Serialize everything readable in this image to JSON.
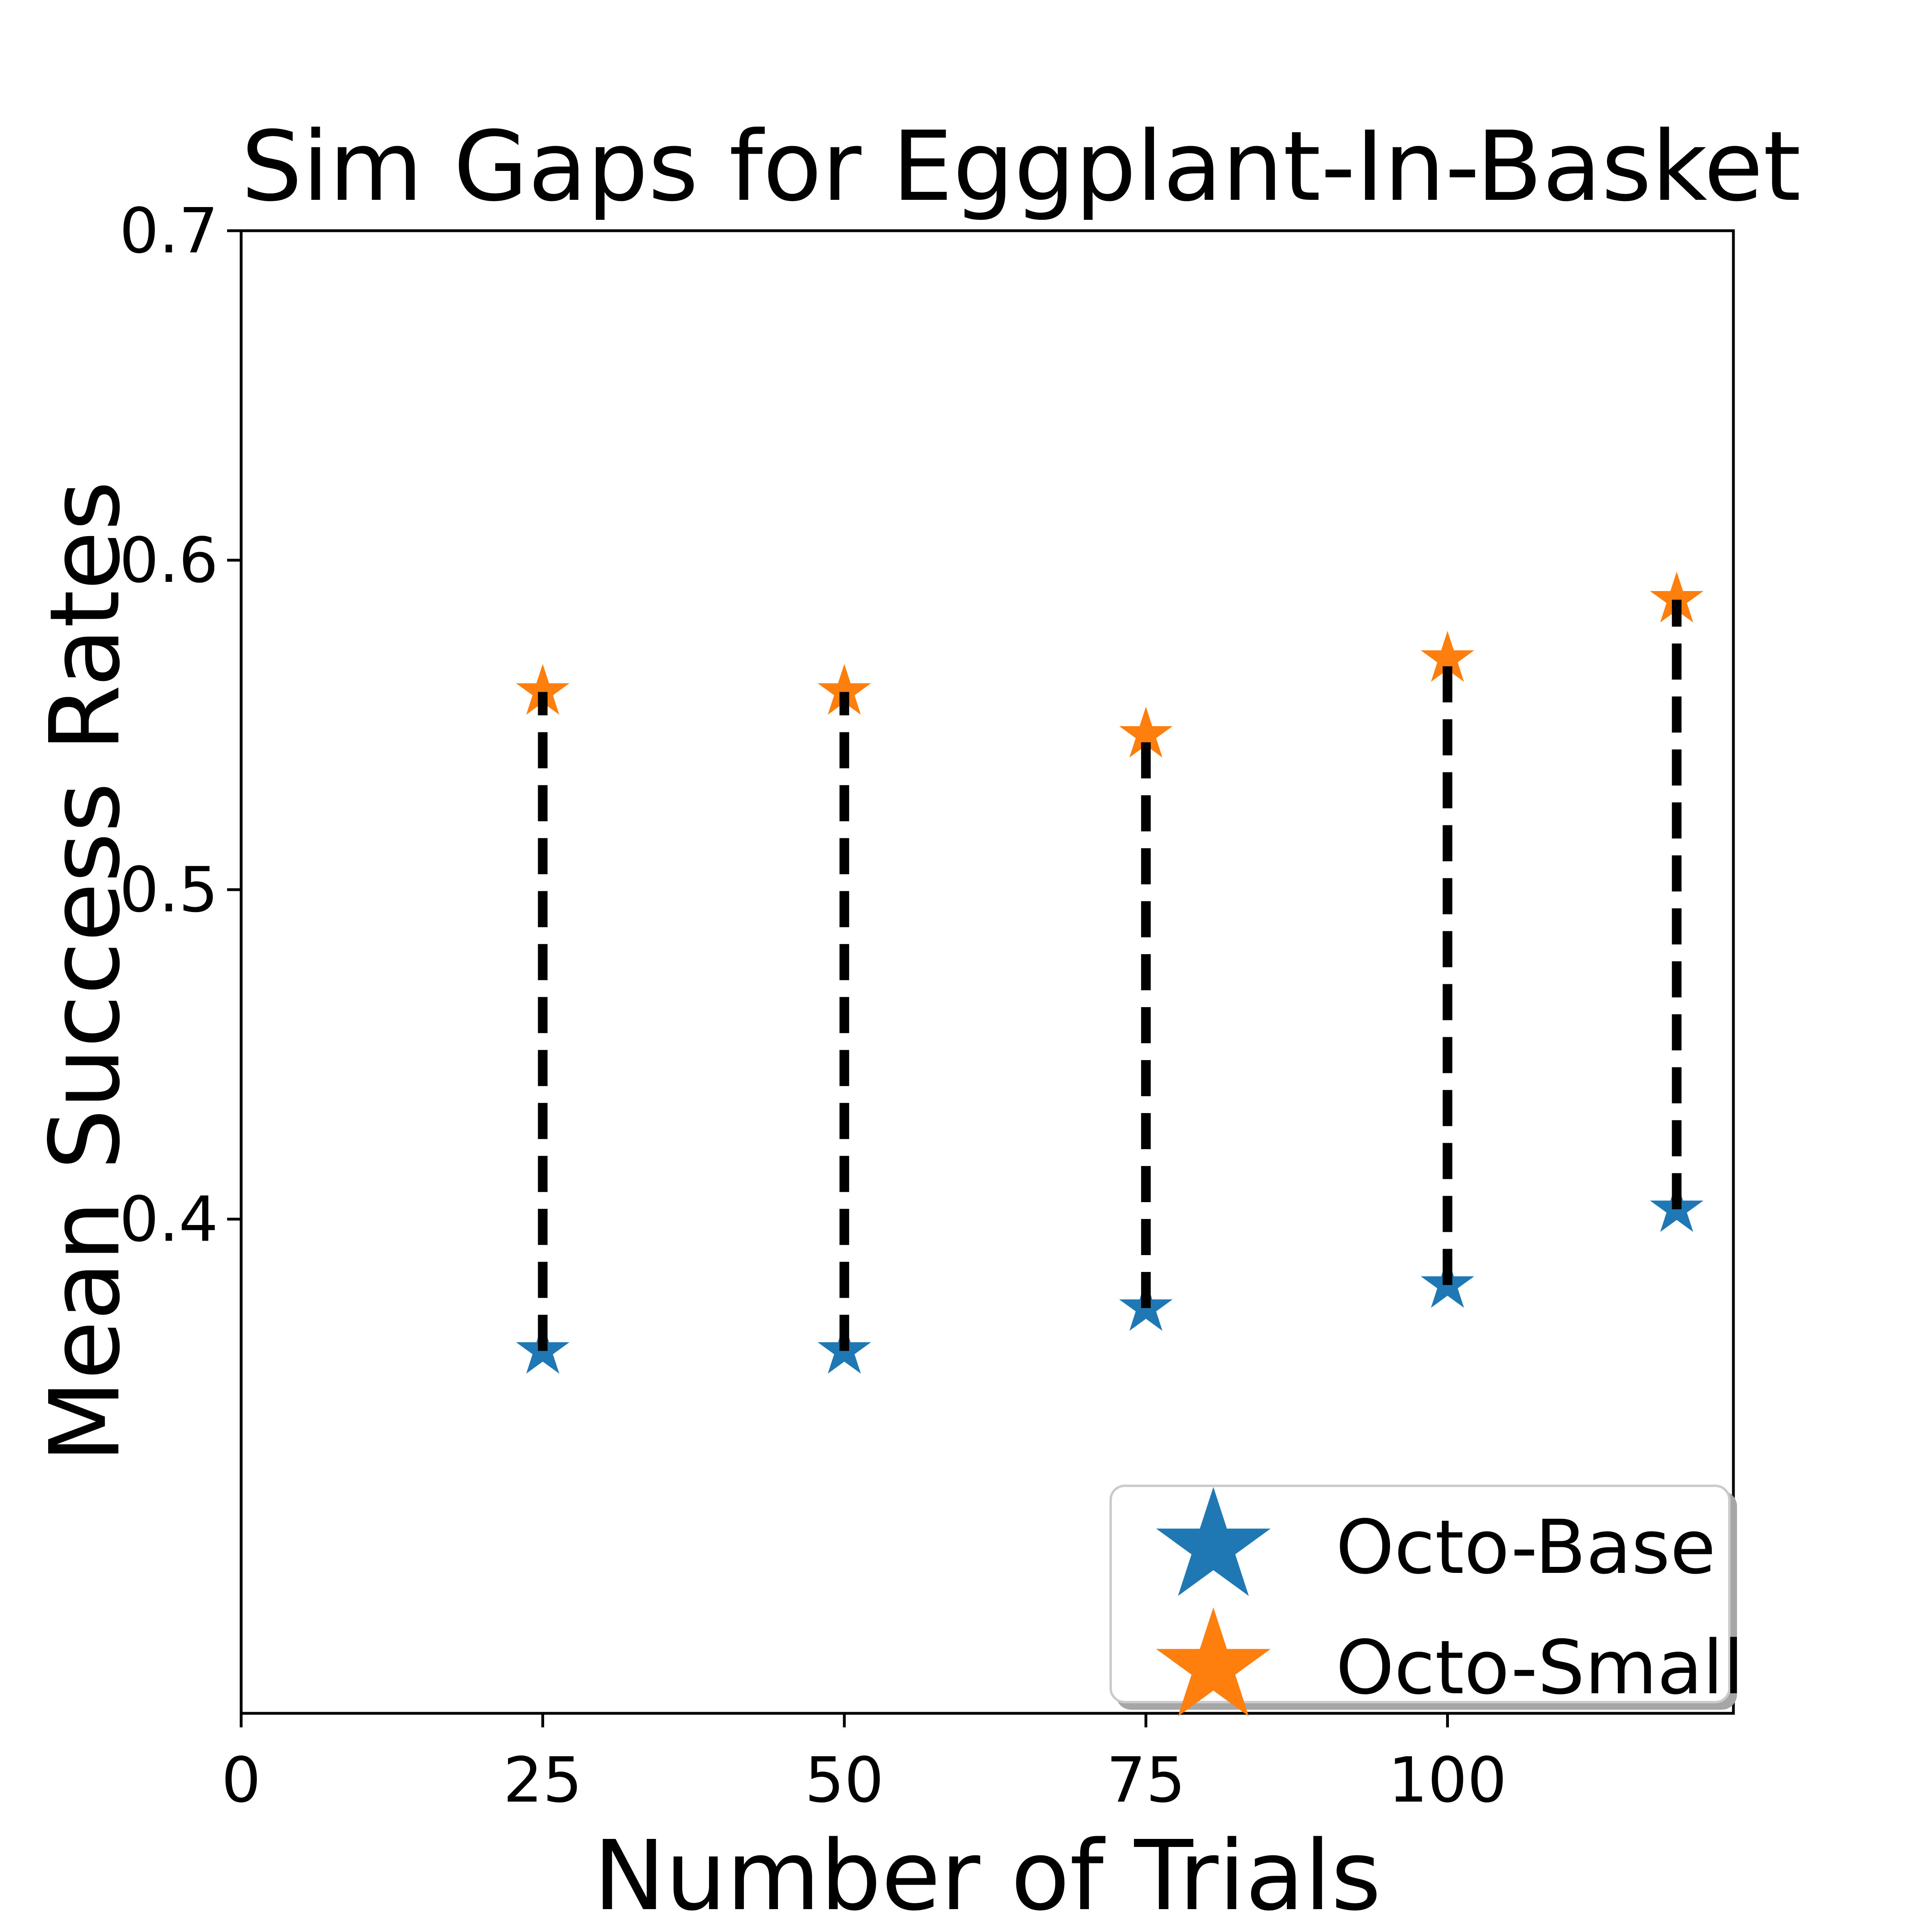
{
  "chart_data": {
    "type": "scatter",
    "title": "Sim Gaps for Eggplant-In-Basket",
    "xlabel": "Number of Trials",
    "ylabel": "Mean Success Rates",
    "x": [
      25,
      50,
      75,
      100,
      119
    ],
    "series": [
      {
        "name": "Octo-Base",
        "color": "#1f77b4",
        "marker": "star",
        "values": [
          0.36,
          0.36,
          0.373,
          0.38,
          0.403
        ]
      },
      {
        "name": "Octo-Small",
        "color": "#ff7f0e",
        "marker": "star",
        "values": [
          0.56,
          0.56,
          0.547,
          0.57,
          0.588
        ]
      }
    ],
    "connectors": {
      "style": "dashed",
      "color": "#000000",
      "between": [
        "Octo-Base",
        "Octo-Small"
      ]
    },
    "xlim": [
      0,
      123.7
    ],
    "ylim": [
      0.25,
      0.7
    ],
    "xticks": [
      0,
      25,
      50,
      75,
      100
    ],
    "yticks": [
      0.4,
      0.5,
      0.6,
      0.7
    ],
    "grid": false,
    "legend": {
      "position": "lower right",
      "entries": [
        "Octo-Base",
        "Octo-Small"
      ],
      "border_color": "#cbcbcb"
    }
  }
}
